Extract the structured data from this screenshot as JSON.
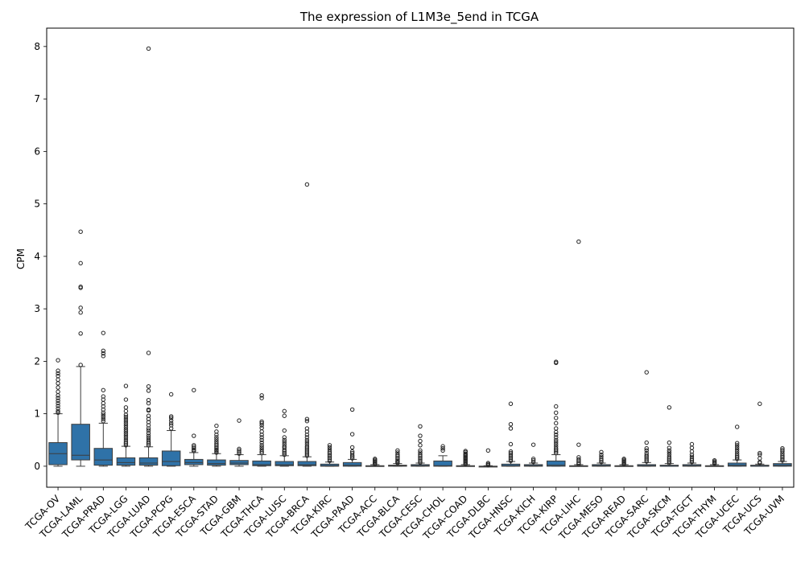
{
  "chart_data": {
    "type": "box",
    "title": "The expression of L1M3e_5end in TCGA",
    "xlabel": "",
    "ylabel": "CPM",
    "ylim": [
      -0.4,
      8.35
    ],
    "yticks": [
      0,
      1,
      2,
      3,
      4,
      5,
      6,
      7,
      8
    ],
    "grid": false,
    "box_color": "#2f72a8",
    "categories": [
      "TCGA-OV",
      "TCGA-LAML",
      "TCGA-PRAD",
      "TCGA-LGG",
      "TCGA-LUAD",
      "TCGA-PCPG",
      "TCGA-ESCA",
      "TCGA-STAD",
      "TCGA-GBM",
      "TCGA-THCA",
      "TCGA-LUSC",
      "TCGA-BRCA",
      "TCGA-KIRC",
      "TCGA-PAAD",
      "TCGA-ACC",
      "TCGA-BLCA",
      "TCGA-CESC",
      "TCGA-CHOL",
      "TCGA-COAD",
      "TCGA-DLBC",
      "TCGA-HNSC",
      "TCGA-KICH",
      "TCGA-KIRP",
      "TCGA-LIHC",
      "TCGA-MESO",
      "TCGA-READ",
      "TCGA-SARC",
      "TCGA-SKCM",
      "TCGA-TGCT",
      "TCGA-THYM",
      "TCGA-UCEC",
      "TCGA-UCS",
      "TCGA-UVM"
    ],
    "boxes": [
      {
        "whislo": 0.0,
        "q1": 0.03,
        "med": 0.24,
        "q3": 0.45,
        "whishi": 1.0,
        "fliers": [
          1.02,
          1.05,
          1.1,
          1.15,
          1.2,
          1.25,
          1.3,
          1.35,
          1.42,
          1.5,
          1.58,
          1.65,
          1.72,
          1.77,
          1.82,
          2.02
        ]
      },
      {
        "whislo": 0.0,
        "q1": 0.12,
        "med": 0.21,
        "q3": 0.8,
        "whishi": 1.9,
        "fliers": [
          1.93,
          2.53,
          2.93,
          3.02,
          3.4,
          3.42,
          3.87,
          4.47
        ]
      },
      {
        "whislo": 0.0,
        "q1": 0.02,
        "med": 0.12,
        "q3": 0.34,
        "whishi": 0.82,
        "fliers": [
          0.86,
          0.9,
          0.94,
          0.98,
          1.02,
          1.08,
          1.14,
          1.2,
          1.27,
          1.33,
          1.45,
          2.1,
          2.15,
          2.2,
          2.54
        ]
      },
      {
        "whislo": 0.0,
        "q1": 0.02,
        "med": 0.07,
        "q3": 0.16,
        "whishi": 0.38,
        "fliers": [
          0.4,
          0.43,
          0.46,
          0.5,
          0.54,
          0.58,
          0.62,
          0.66,
          0.7,
          0.74,
          0.78,
          0.82,
          0.86,
          0.9,
          0.94,
          0.98,
          1.05,
          1.12,
          1.27,
          1.53
        ]
      },
      {
        "whislo": 0.0,
        "q1": 0.02,
        "med": 0.06,
        "q3": 0.16,
        "whishi": 0.37,
        "fliers": [
          0.4,
          0.43,
          0.46,
          0.5,
          0.54,
          0.58,
          0.63,
          0.68,
          0.72,
          0.78,
          0.84,
          0.9,
          0.96,
          1.06,
          1.08,
          1.2,
          1.26,
          1.44,
          1.52,
          2.16,
          7.96
        ]
      },
      {
        "whislo": 0.0,
        "q1": 0.01,
        "med": 0.09,
        "q3": 0.29,
        "whishi": 0.68,
        "fliers": [
          0.72,
          0.78,
          0.82,
          0.87,
          0.92,
          0.95,
          1.37
        ]
      },
      {
        "whislo": 0.0,
        "q1": 0.03,
        "med": 0.07,
        "q3": 0.13,
        "whishi": 0.26,
        "fliers": [
          0.29,
          0.31,
          0.34,
          0.37,
          0.4,
          0.58,
          1.45
        ]
      },
      {
        "whislo": 0.0,
        "q1": 0.02,
        "med": 0.05,
        "q3": 0.12,
        "whishi": 0.24,
        "fliers": [
          0.26,
          0.29,
          0.31,
          0.34,
          0.37,
          0.4,
          0.43,
          0.47,
          0.51,
          0.55,
          0.6,
          0.66,
          0.77
        ]
      },
      {
        "whislo": 0.0,
        "q1": 0.03,
        "med": 0.06,
        "q3": 0.11,
        "whishi": 0.22,
        "fliers": [
          0.24,
          0.27,
          0.3,
          0.33,
          0.87
        ]
      },
      {
        "whislo": 0.0,
        "q1": 0.01,
        "med": 0.03,
        "q3": 0.1,
        "whishi": 0.22,
        "fliers": [
          0.25,
          0.28,
          0.32,
          0.36,
          0.4,
          0.45,
          0.5,
          0.55,
          0.6,
          0.66,
          0.73,
          0.78,
          0.82,
          0.85,
          1.3,
          1.35
        ]
      },
      {
        "whislo": 0.0,
        "q1": 0.01,
        "med": 0.03,
        "q3": 0.09,
        "whishi": 0.2,
        "fliers": [
          0.22,
          0.25,
          0.28,
          0.31,
          0.35,
          0.38,
          0.42,
          0.46,
          0.5,
          0.55,
          0.68,
          0.96,
          1.05
        ]
      },
      {
        "whislo": 0.0,
        "q1": 0.01,
        "med": 0.03,
        "q3": 0.09,
        "whishi": 0.18,
        "fliers": [
          0.2,
          0.23,
          0.26,
          0.29,
          0.32,
          0.35,
          0.38,
          0.42,
          0.46,
          0.5,
          0.55,
          0.6,
          0.66,
          0.72,
          0.86,
          0.9,
          5.37
        ]
      },
      {
        "whislo": 0.0,
        "q1": 0.0,
        "med": 0.01,
        "q3": 0.04,
        "whishi": 0.08,
        "fliers": [
          0.1,
          0.13,
          0.16,
          0.19,
          0.22,
          0.25,
          0.28,
          0.32,
          0.36,
          0.4
        ]
      },
      {
        "whislo": 0.0,
        "q1": 0.0,
        "med": 0.02,
        "q3": 0.07,
        "whishi": 0.13,
        "fliers": [
          0.15,
          0.18,
          0.21,
          0.25,
          0.28,
          0.36,
          0.61,
          1.08
        ]
      },
      {
        "whislo": 0.0,
        "q1": 0.0,
        "med": 0.0,
        "q3": 0.01,
        "whishi": 0.03,
        "fliers": [
          0.04,
          0.06,
          0.08,
          0.1,
          0.12,
          0.14
        ]
      },
      {
        "whislo": 0.0,
        "q1": 0.0,
        "med": 0.01,
        "q3": 0.02,
        "whishi": 0.05,
        "fliers": [
          0.06,
          0.08,
          0.1,
          0.13,
          0.16,
          0.19,
          0.22,
          0.26,
          0.3
        ]
      },
      {
        "whislo": 0.0,
        "q1": 0.0,
        "med": 0.01,
        "q3": 0.03,
        "whishi": 0.06,
        "fliers": [
          0.07,
          0.1,
          0.13,
          0.16,
          0.19,
          0.22,
          0.26,
          0.3,
          0.4,
          0.48,
          0.58,
          0.76
        ]
      },
      {
        "whislo": 0.0,
        "q1": 0.0,
        "med": 0.01,
        "q3": 0.1,
        "whishi": 0.2,
        "fliers": [
          0.3,
          0.34,
          0.38
        ]
      },
      {
        "whislo": 0.0,
        "q1": 0.0,
        "med": 0.0,
        "q3": 0.01,
        "whishi": 0.03,
        "fliers": [
          0.04,
          0.06,
          0.08,
          0.1,
          0.12,
          0.14,
          0.16,
          0.18,
          0.2,
          0.22,
          0.24,
          0.27,
          0.29
        ]
      },
      {
        "whislo": 0.0,
        "q1": 0.0,
        "med": 0.0,
        "q3": 0.0,
        "whishi": 0.01,
        "fliers": [
          0.02,
          0.04,
          0.06,
          0.3
        ]
      },
      {
        "whislo": 0.0,
        "q1": 0.0,
        "med": 0.01,
        "q3": 0.04,
        "whishi": 0.09,
        "fliers": [
          0.1,
          0.13,
          0.16,
          0.19,
          0.22,
          0.25,
          0.28,
          0.42,
          0.72,
          0.8,
          1.19
        ]
      },
      {
        "whislo": 0.0,
        "q1": 0.0,
        "med": 0.01,
        "q3": 0.03,
        "whishi": 0.06,
        "fliers": [
          0.08,
          0.11,
          0.14,
          0.41
        ]
      },
      {
        "whislo": 0.0,
        "q1": 0.0,
        "med": 0.02,
        "q3": 0.1,
        "whishi": 0.22,
        "fliers": [
          0.25,
          0.28,
          0.31,
          0.34,
          0.38,
          0.42,
          0.46,
          0.5,
          0.55,
          0.6,
          0.65,
          0.72,
          0.82,
          0.92,
          1.02,
          1.14,
          1.97,
          1.99
        ]
      },
      {
        "whislo": 0.0,
        "q1": 0.0,
        "med": 0.0,
        "q3": 0.01,
        "whishi": 0.03,
        "fliers": [
          0.04,
          0.07,
          0.1,
          0.13,
          0.17,
          0.41,
          4.28
        ]
      },
      {
        "whislo": 0.0,
        "q1": 0.0,
        "med": 0.01,
        "q3": 0.03,
        "whishi": 0.06,
        "fliers": [
          0.08,
          0.11,
          0.14,
          0.18,
          0.22,
          0.27
        ]
      },
      {
        "whislo": 0.0,
        "q1": 0.0,
        "med": 0.0,
        "q3": 0.01,
        "whishi": 0.03,
        "fliers": [
          0.04,
          0.06,
          0.08,
          0.1,
          0.12,
          0.14
        ]
      },
      {
        "whislo": 0.0,
        "q1": 0.0,
        "med": 0.01,
        "q3": 0.03,
        "whishi": 0.07,
        "fliers": [
          0.09,
          0.12,
          0.15,
          0.18,
          0.21,
          0.25,
          0.3,
          0.34,
          0.45,
          1.79
        ]
      },
      {
        "whislo": 0.0,
        "q1": 0.0,
        "med": 0.0,
        "q3": 0.02,
        "whishi": 0.05,
        "fliers": [
          0.06,
          0.09,
          0.12,
          0.15,
          0.18,
          0.22,
          0.26,
          0.3,
          0.35,
          0.45,
          1.12
        ]
      },
      {
        "whislo": 0.0,
        "q1": 0.0,
        "med": 0.01,
        "q3": 0.03,
        "whishi": 0.06,
        "fliers": [
          0.08,
          0.11,
          0.14,
          0.18,
          0.22,
          0.28,
          0.35,
          0.42
        ]
      },
      {
        "whislo": 0.0,
        "q1": 0.0,
        "med": 0.0,
        "q3": 0.01,
        "whishi": 0.03,
        "fliers": [
          0.05,
          0.07,
          0.09,
          0.11
        ]
      },
      {
        "whislo": 0.0,
        "q1": 0.0,
        "med": 0.02,
        "q3": 0.06,
        "whishi": 0.12,
        "fliers": [
          0.14,
          0.17,
          0.2,
          0.24,
          0.28,
          0.32,
          0.36,
          0.4,
          0.44,
          0.75
        ]
      },
      {
        "whislo": 0.0,
        "q1": 0.0,
        "med": 0.0,
        "q3": 0.02,
        "whishi": 0.04,
        "fliers": [
          0.06,
          0.08,
          0.15,
          0.22,
          0.25,
          1.19
        ]
      },
      {
        "whislo": 0.0,
        "q1": 0.0,
        "med": 0.02,
        "q3": 0.05,
        "whishi": 0.09,
        "fliers": [
          0.11,
          0.14,
          0.17,
          0.2,
          0.24,
          0.28,
          0.31,
          0.34
        ]
      }
    ]
  }
}
